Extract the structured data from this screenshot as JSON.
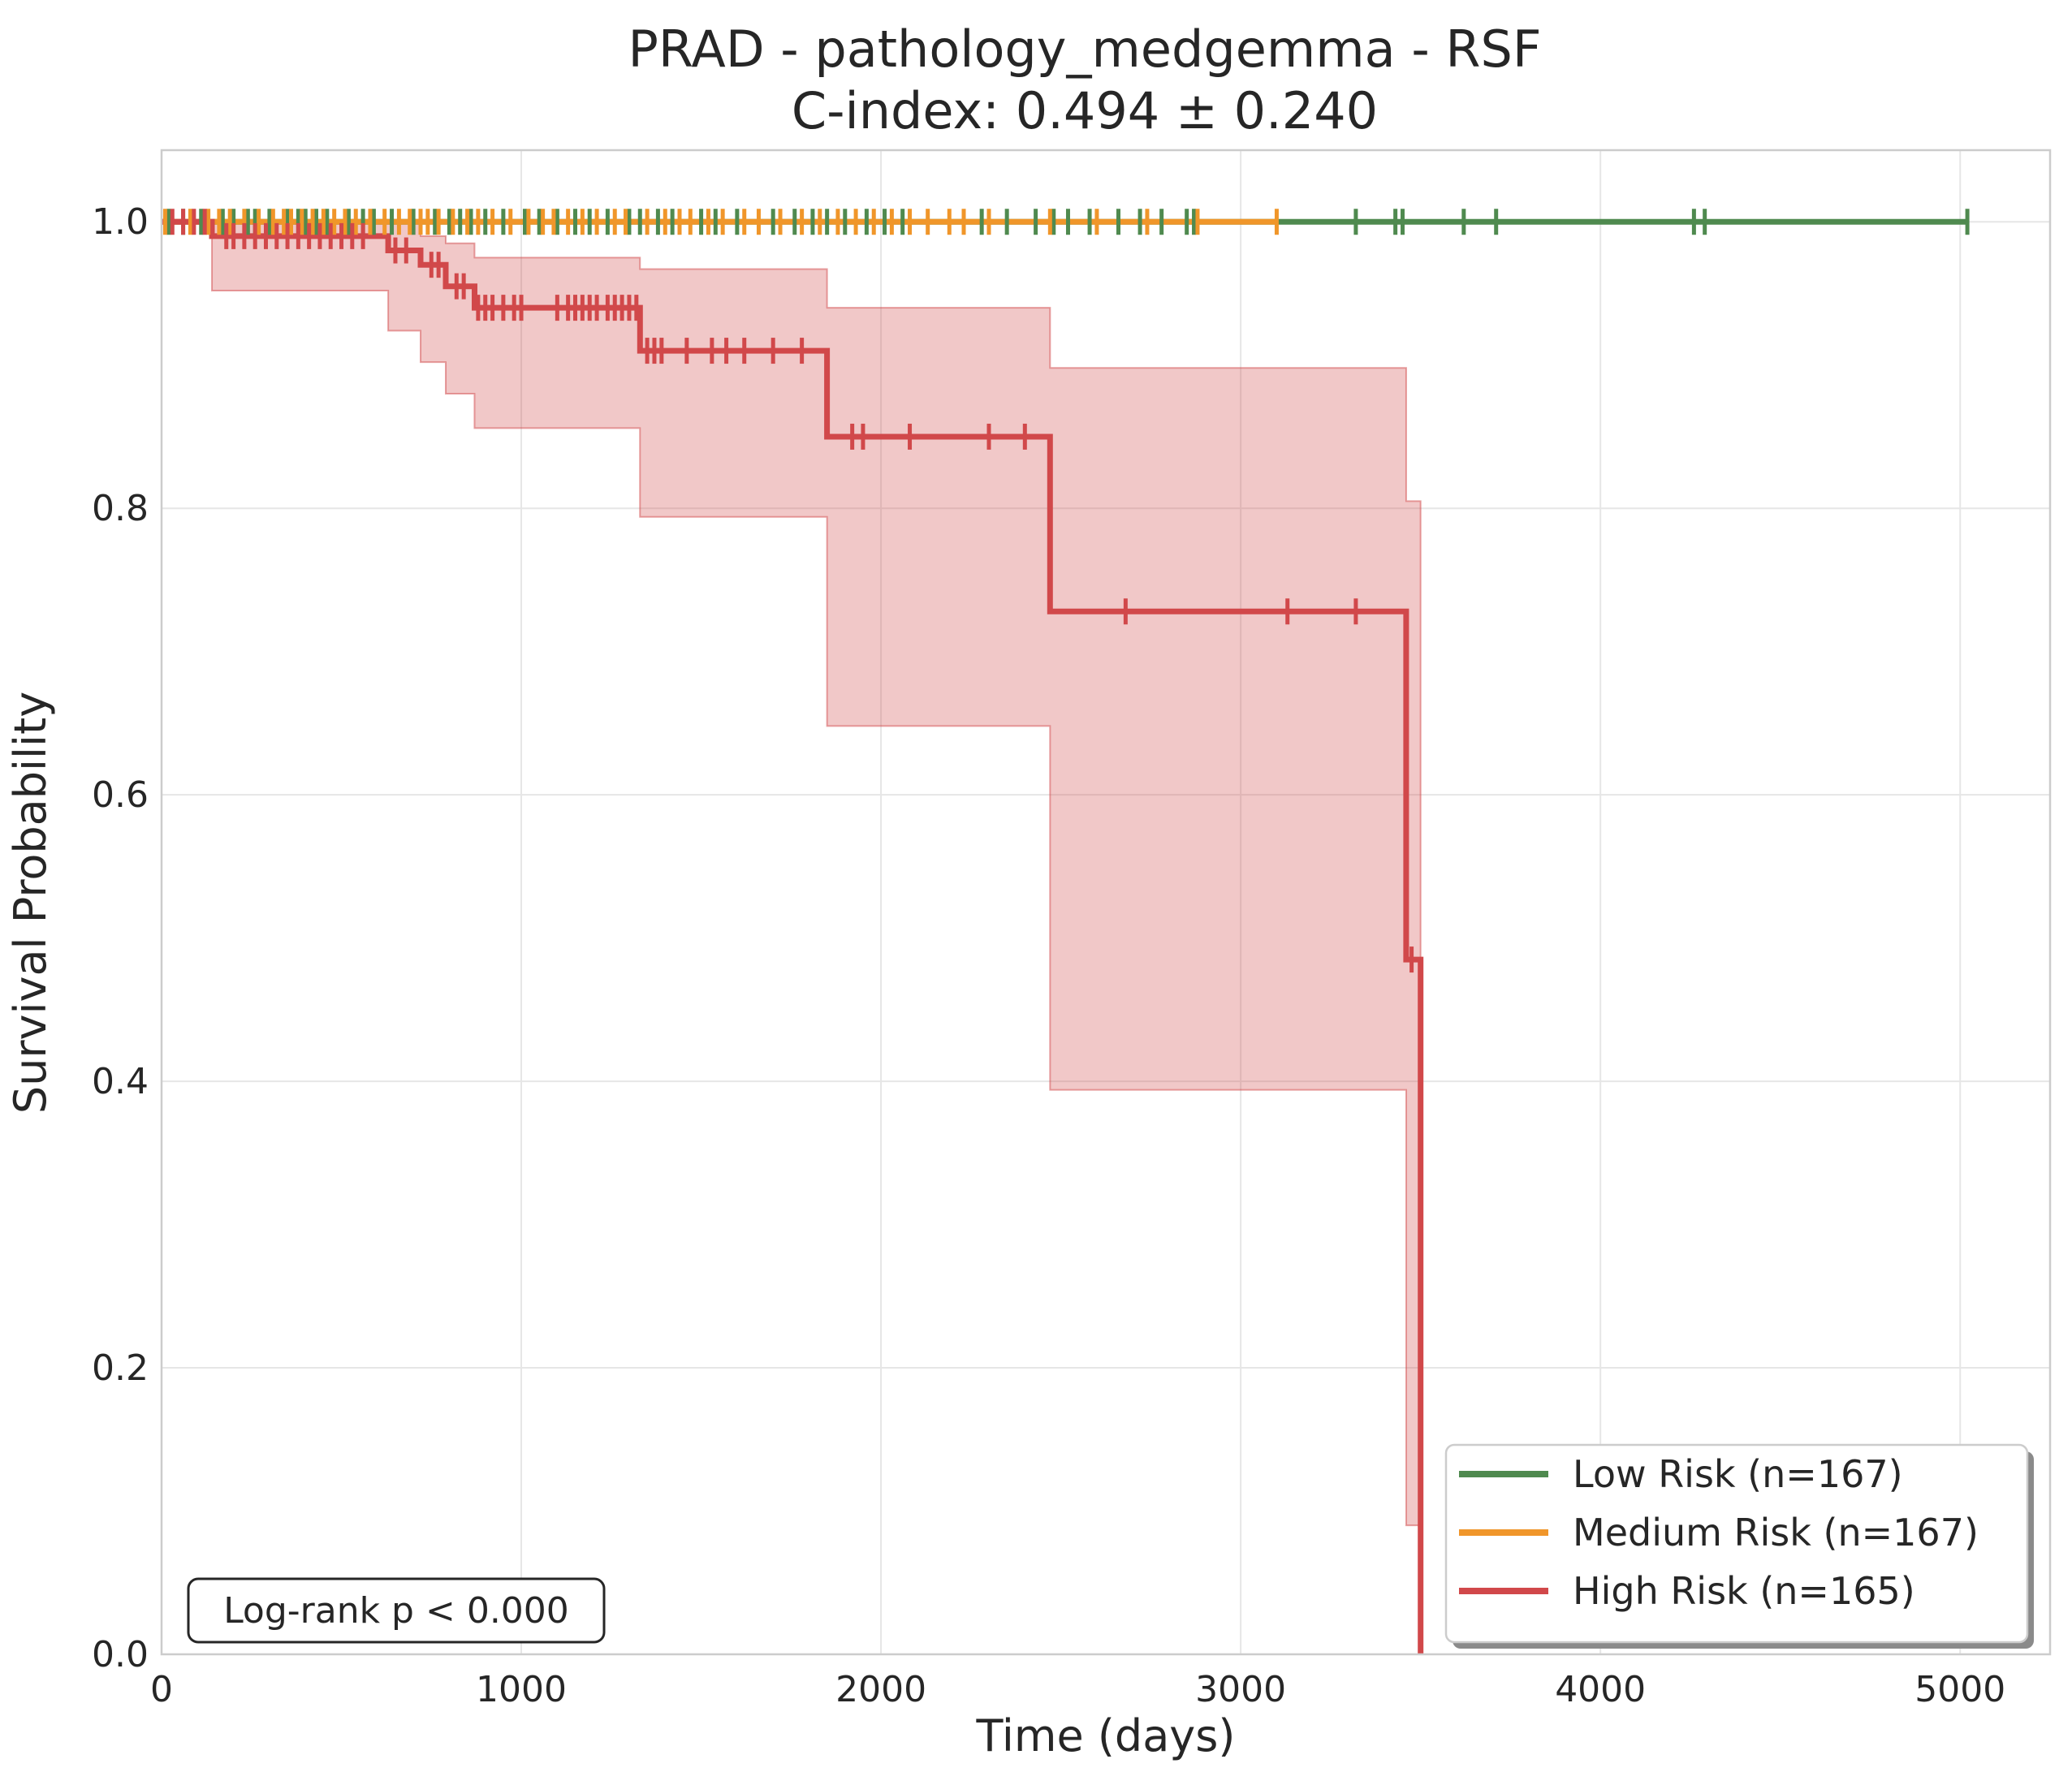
{
  "chart_data": {
    "type": "line",
    "title": "PRAD - pathology_medgemma - RSF",
    "subtitle": "C-index: 0.494 ± 0.240",
    "xlabel": "Time (days)",
    "ylabel": "Survival Probability",
    "xlim": [
      0,
      5250
    ],
    "ylim": [
      0.0,
      1.05
    ],
    "xticks": [
      "0",
      "1000",
      "2000",
      "3000",
      "4000",
      "5000"
    ],
    "xtick_values": [
      0,
      1000,
      2000,
      3000,
      4000,
      5000
    ],
    "yticks": [
      "0.0",
      "0.2",
      "0.4",
      "0.6",
      "0.8",
      "1.0"
    ],
    "ytick_values": [
      0.0,
      0.2,
      0.4,
      0.6,
      0.8,
      1.0
    ],
    "grid": true,
    "legend_position": "bottom-right",
    "annotation": "Log-rank p < 0.000",
    "series": [
      {
        "name": "Low Risk (n=167)",
        "color": "#4f8a4f",
        "steps": [
          [
            0,
            1.0
          ],
          [
            5020,
            1.0
          ]
        ],
        "censor_times": [
          20,
          60,
          110,
          170,
          200,
          240,
          260,
          300,
          350,
          380,
          400,
          430,
          460,
          520,
          560,
          590,
          640,
          700,
          760,
          800,
          830,
          860,
          900,
          950,
          1010,
          1050,
          1100,
          1150,
          1190,
          1240,
          1300,
          1330,
          1380,
          1420,
          1500,
          1540,
          1600,
          1700,
          1760,
          1810,
          1850,
          1900,
          1960,
          2010,
          2060,
          2280,
          2350,
          2430,
          2480,
          2520,
          2580,
          2660,
          2720,
          2780,
          2850,
          2870,
          3320,
          3430,
          3450,
          3620,
          3710,
          4260,
          4290,
          5020
        ]
      },
      {
        "name": "Medium Risk (n=167)",
        "color": "#f0962a",
        "steps": [
          [
            0,
            1.0
          ],
          [
            3100,
            1.0
          ]
        ],
        "censor_times": [
          10,
          80,
          130,
          160,
          190,
          230,
          270,
          310,
          340,
          360,
          390,
          420,
          450,
          480,
          510,
          540,
          580,
          620,
          660,
          690,
          720,
          740,
          770,
          810,
          850,
          880,
          920,
          970,
          1020,
          1060,
          1090,
          1130,
          1170,
          1210,
          1260,
          1290,
          1350,
          1400,
          1440,
          1470,
          1520,
          1560,
          1620,
          1660,
          1720,
          1780,
          1830,
          1880,
          1930,
          1980,
          2030,
          2080,
          2130,
          2190,
          2230,
          2300,
          2470,
          2600,
          2740,
          2880,
          3100
        ]
      },
      {
        "name": "High Risk (n=165)",
        "color": "#d1484a",
        "steps": [
          [
            0,
            1.0
          ],
          [
            140,
            1.0
          ],
          [
            140,
            0.99
          ],
          [
            630,
            0.99
          ],
          [
            630,
            0.98
          ],
          [
            720,
            0.98
          ],
          [
            720,
            0.97
          ],
          [
            790,
            0.97
          ],
          [
            790,
            0.955
          ],
          [
            870,
            0.955
          ],
          [
            870,
            0.94
          ],
          [
            1330,
            0.94
          ],
          [
            1330,
            0.91
          ],
          [
            1850,
            0.91
          ],
          [
            1850,
            0.85
          ],
          [
            2470,
            0.85
          ],
          [
            2470,
            0.728
          ],
          [
            3460,
            0.728
          ],
          [
            3460,
            0.485
          ],
          [
            3500,
            0.485
          ],
          [
            3500,
            0.0
          ]
        ],
        "ci_band": [
          [
            0,
            1.0,
            1.0
          ],
          [
            140,
            0.952,
            1.0
          ],
          [
            630,
            0.924,
            1.0
          ],
          [
            720,
            0.902,
            0.99
          ],
          [
            790,
            0.88,
            0.985
          ],
          [
            870,
            0.856,
            0.975
          ],
          [
            1330,
            0.794,
            0.967
          ],
          [
            1850,
            0.648,
            0.94
          ],
          [
            2470,
            0.394,
            0.898
          ],
          [
            3460,
            0.09,
            0.805
          ],
          [
            3500,
            0.09,
            0.805
          ]
        ],
        "censor_times": [
          30,
          60,
          90,
          120,
          180,
          200,
          230,
          260,
          290,
          320,
          350,
          380,
          410,
          440,
          470,
          500,
          530,
          560,
          650,
          680,
          750,
          770,
          820,
          840,
          880,
          900,
          920,
          950,
          980,
          1000,
          1100,
          1130,
          1150,
          1170,
          1190,
          1210,
          1240,
          1260,
          1280,
          1300,
          1320,
          1350,
          1370,
          1390,
          1460,
          1530,
          1570,
          1620,
          1700,
          1780,
          1920,
          1950,
          2080,
          2300,
          2400,
          2680,
          3130,
          3320,
          3475
        ]
      }
    ]
  }
}
